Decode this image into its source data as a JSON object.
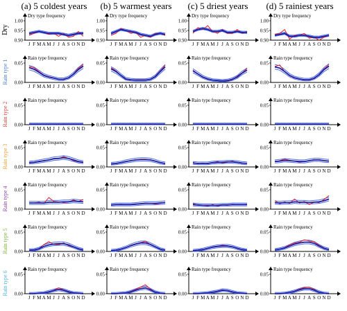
{
  "chart_data": {
    "type": "line",
    "columns": [
      "(a) 5 coldest years",
      "(b) 5 warmest years",
      "(c) 5 driest years",
      "(d) 5 rainiest years"
    ],
    "rows": [
      {
        "label": "Dry",
        "color": "#000000",
        "panel_title": "Dry type frequency",
        "ylim": [
          0.9,
          1.0
        ],
        "yticks": [
          "0.90",
          "0.95",
          "1.00"
        ]
      },
      {
        "label": "Rain type 1",
        "color": "#4a7fcf",
        "panel_title": "Rain type frequency",
        "ylim": [
          0,
          0.05
        ],
        "yticks": [
          "0.00",
          "0.05"
        ]
      },
      {
        "label": "Rain type 2",
        "color": "#d8453c",
        "panel_title": "Rain type frequency",
        "ylim": [
          0,
          0.05
        ],
        "yticks": [
          "0.00",
          "0.05"
        ]
      },
      {
        "label": "Rain type 3",
        "color": "#e8a33a",
        "panel_title": "Rain type frequency",
        "ylim": [
          0,
          0.05
        ],
        "yticks": [
          "0.00",
          "0.05"
        ]
      },
      {
        "label": "Rain type 4",
        "color": "#8a3fa8",
        "panel_title": "Rain type frequency",
        "ylim": [
          0,
          0.05
        ],
        "yticks": [
          "0.00",
          "0.05"
        ]
      },
      {
        "label": "Rain type 5",
        "color": "#7bb33a",
        "panel_title": "Rain type frequency",
        "ylim": [
          0,
          0.05
        ],
        "yticks": [
          "0.00",
          "0.05"
        ]
      },
      {
        "label": "Rain type 6",
        "color": "#4fb3de",
        "panel_title": "Rain type frequency",
        "ylim": [
          0,
          0.05
        ],
        "yticks": [
          "0.00",
          "0.05"
        ]
      }
    ],
    "months": [
      "J",
      "F",
      "M",
      "A",
      "M",
      "J",
      "J",
      "A",
      "S",
      "O",
      "N",
      "D"
    ],
    "line_colors": {
      "observed": "#e02020",
      "mean": "#1a1a9c",
      "envelope": "#4a6cf0"
    },
    "panels": [
      [
        {
          "obs": [
            0.925,
            0.935,
            0.945,
            0.94,
            0.93,
            0.935,
            0.92,
            0.935,
            0.915,
            0.92,
            0.945,
            0.92
          ],
          "mean": [
            0.935,
            0.94,
            0.945,
            0.94,
            0.935,
            0.935,
            0.935,
            0.93,
            0.925,
            0.93,
            0.935,
            0.935
          ]
        },
        {
          "obs": [
            0.041,
            0.038,
            0.028,
            0.019,
            0.015,
            0.012,
            0.008,
            0.007,
            0.012,
            0.022,
            0.036,
            0.046
          ],
          "mean": [
            0.038,
            0.034,
            0.026,
            0.018,
            0.014,
            0.011,
            0.008,
            0.008,
            0.012,
            0.021,
            0.033,
            0.042
          ]
        },
        {
          "obs": [
            0.001,
            0.001,
            0.001,
            0.001,
            0.001,
            0.001,
            0.001,
            0.002,
            0.001,
            0.002,
            0.001,
            0.001
          ],
          "mean": [
            0.001,
            0.001,
            0.001,
            0.001,
            0.001,
            0.001,
            0.001,
            0.001,
            0.001,
            0.001,
            0.001,
            0.001
          ]
        },
        {
          "obs": [
            0.01,
            0.011,
            0.015,
            0.015,
            0.018,
            0.022,
            0.021,
            0.027,
            0.022,
            0.016,
            0.013,
            0.011
          ],
          "mean": [
            0.011,
            0.012,
            0.014,
            0.016,
            0.018,
            0.021,
            0.022,
            0.024,
            0.022,
            0.018,
            0.014,
            0.012
          ]
        },
        {
          "obs": [
            0.016,
            0.016,
            0.018,
            0.015,
            0.03,
            0.02,
            0.019,
            0.017,
            0.018,
            0.024,
            0.02,
            0.025
          ],
          "mean": [
            0.016,
            0.016,
            0.016,
            0.016,
            0.018,
            0.018,
            0.018,
            0.019,
            0.019,
            0.021,
            0.02,
            0.019
          ]
        },
        {
          "obs": [
            0.002,
            0.004,
            0.007,
            0.018,
            0.025,
            0.018,
            0.017,
            0.022,
            0.015,
            0.011,
            0.007,
            0.004
          ],
          "mean": [
            0.003,
            0.004,
            0.007,
            0.013,
            0.017,
            0.019,
            0.02,
            0.02,
            0.017,
            0.012,
            0.007,
            0.004
          ]
        },
        {
          "obs": [
            0.0,
            0.0,
            0.001,
            0.002,
            0.005,
            0.009,
            0.015,
            0.01,
            0.006,
            0.002,
            0.001,
            0.0
          ],
          "mean": [
            0.0,
            0.0,
            0.001,
            0.002,
            0.005,
            0.008,
            0.011,
            0.009,
            0.005,
            0.002,
            0.001,
            0.0
          ]
        }
      ],
      [
        {
          "obs": [
            0.925,
            0.935,
            0.96,
            0.95,
            0.935,
            0.94,
            0.915,
            0.925,
            0.915,
            0.935,
            0.935,
            0.925
          ],
          "mean": [
            0.935,
            0.945,
            0.955,
            0.95,
            0.945,
            0.94,
            0.93,
            0.925,
            0.92,
            0.93,
            0.935,
            0.93
          ]
        },
        {
          "obs": [
            0.038,
            0.03,
            0.018,
            0.008,
            0.006,
            0.007,
            0.007,
            0.007,
            0.008,
            0.016,
            0.03,
            0.044
          ],
          "mean": [
            0.035,
            0.028,
            0.018,
            0.009,
            0.007,
            0.006,
            0.006,
            0.006,
            0.008,
            0.015,
            0.028,
            0.04
          ]
        },
        {
          "obs": [
            0.001,
            0.001,
            0.001,
            0.001,
            0.001,
            0.001,
            0.001,
            0.001,
            0.002,
            0.001,
            0.001,
            0.001
          ],
          "mean": [
            0.001,
            0.001,
            0.001,
            0.001,
            0.001,
            0.001,
            0.001,
            0.001,
            0.001,
            0.001,
            0.001,
            0.001
          ]
        },
        {
          "obs": [
            0.007,
            0.008,
            0.011,
            0.014,
            0.016,
            0.018,
            0.02,
            0.02,
            0.018,
            0.015,
            0.011,
            0.008
          ],
          "mean": [
            0.008,
            0.009,
            0.011,
            0.014,
            0.016,
            0.018,
            0.019,
            0.019,
            0.018,
            0.015,
            0.011,
            0.009
          ]
        },
        {
          "obs": [
            0.01,
            0.012,
            0.013,
            0.012,
            0.012,
            0.012,
            0.014,
            0.016,
            0.015,
            0.013,
            0.015,
            0.018
          ],
          "mean": [
            0.011,
            0.012,
            0.012,
            0.012,
            0.012,
            0.013,
            0.014,
            0.015,
            0.015,
            0.015,
            0.016,
            0.017
          ]
        },
        {
          "obs": [
            0.002,
            0.003,
            0.006,
            0.01,
            0.016,
            0.02,
            0.023,
            0.026,
            0.018,
            0.012,
            0.006,
            0.003
          ],
          "mean": [
            0.002,
            0.003,
            0.006,
            0.01,
            0.015,
            0.019,
            0.022,
            0.022,
            0.018,
            0.012,
            0.006,
            0.003
          ]
        },
        {
          "obs": [
            0.0,
            0.0,
            0.001,
            0.002,
            0.006,
            0.011,
            0.017,
            0.023,
            0.012,
            0.004,
            0.001,
            0.0
          ],
          "mean": [
            0.0,
            0.0,
            0.001,
            0.002,
            0.005,
            0.009,
            0.013,
            0.015,
            0.01,
            0.004,
            0.001,
            0.0
          ]
        }
      ],
      [
        {
          "obs": [
            0.935,
            0.965,
            0.955,
            0.975,
            0.945,
            0.935,
            0.955,
            0.935,
            0.935,
            0.955,
            0.935,
            0.945
          ],
          "mean": [
            0.945,
            0.955,
            0.96,
            0.955,
            0.945,
            0.945,
            0.95,
            0.94,
            0.94,
            0.945,
            0.94,
            0.94
          ]
        },
        {
          "obs": [
            0.032,
            0.022,
            0.013,
            0.008,
            0.006,
            0.005,
            0.004,
            0.004,
            0.007,
            0.016,
            0.025,
            0.036
          ],
          "mean": [
            0.03,
            0.022,
            0.014,
            0.009,
            0.006,
            0.005,
            0.004,
            0.005,
            0.008,
            0.014,
            0.024,
            0.032
          ]
        },
        {
          "obs": [
            0.001,
            0.001,
            0.001,
            0.0,
            0.001,
            0.001,
            0.001,
            0.001,
            0.001,
            0.001,
            0.001,
            0.001
          ],
          "mean": [
            0.001,
            0.001,
            0.001,
            0.001,
            0.001,
            0.001,
            0.001,
            0.001,
            0.001,
            0.001,
            0.001,
            0.001
          ]
        },
        {
          "obs": [
            0.012,
            0.008,
            0.01,
            0.008,
            0.011,
            0.014,
            0.01,
            0.012,
            0.015,
            0.012,
            0.009,
            0.009
          ],
          "mean": [
            0.01,
            0.009,
            0.009,
            0.009,
            0.011,
            0.012,
            0.012,
            0.013,
            0.013,
            0.012,
            0.01,
            0.009
          ]
        },
        {
          "obs": [
            0.015,
            0.01,
            0.01,
            0.008,
            0.012,
            0.008,
            0.011,
            0.01,
            0.013,
            0.012,
            0.012,
            0.013
          ],
          "mean": [
            0.012,
            0.011,
            0.01,
            0.01,
            0.01,
            0.01,
            0.011,
            0.011,
            0.012,
            0.012,
            0.012,
            0.012
          ]
        },
        {
          "obs": [
            0.002,
            0.003,
            0.005,
            0.008,
            0.012,
            0.014,
            0.016,
            0.015,
            0.012,
            0.009,
            0.005,
            0.003
          ],
          "mean": [
            0.002,
            0.003,
            0.005,
            0.008,
            0.011,
            0.013,
            0.014,
            0.014,
            0.012,
            0.008,
            0.005,
            0.003
          ]
        },
        {
          "obs": [
            0.0,
            0.0,
            0.001,
            0.002,
            0.004,
            0.007,
            0.01,
            0.008,
            0.005,
            0.002,
            0.001,
            0.0
          ],
          "mean": [
            0.0,
            0.0,
            0.001,
            0.002,
            0.004,
            0.006,
            0.009,
            0.008,
            0.005,
            0.002,
            0.001,
            0.0
          ]
        }
      ],
      [
        {
          "obs": [
            0.93,
            0.935,
            0.955,
            0.905,
            0.925,
            0.925,
            0.935,
            0.91,
            0.915,
            0.9,
            0.915,
            0.925
          ],
          "mean": [
            0.925,
            0.93,
            0.935,
            0.92,
            0.92,
            0.925,
            0.925,
            0.92,
            0.915,
            0.915,
            0.92,
            0.925
          ]
        },
        {
          "obs": [
            0.041,
            0.045,
            0.028,
            0.017,
            0.011,
            0.009,
            0.006,
            0.006,
            0.01,
            0.021,
            0.035,
            0.046
          ],
          "mean": [
            0.04,
            0.037,
            0.028,
            0.018,
            0.012,
            0.009,
            0.007,
            0.007,
            0.011,
            0.02,
            0.033,
            0.042
          ]
        },
        {
          "obs": [
            0.001,
            0.001,
            0.001,
            0.002,
            0.001,
            0.001,
            0.001,
            0.001,
            0.001,
            0.001,
            0.001,
            0.001
          ],
          "mean": [
            0.001,
            0.001,
            0.001,
            0.001,
            0.001,
            0.001,
            0.001,
            0.001,
            0.001,
            0.001,
            0.001,
            0.001
          ]
        },
        {
          "obs": [
            0.014,
            0.016,
            0.02,
            0.017,
            0.015,
            0.012,
            0.014,
            0.016,
            0.019,
            0.019,
            0.016,
            0.015
          ],
          "mean": [
            0.014,
            0.015,
            0.017,
            0.016,
            0.015,
            0.014,
            0.014,
            0.016,
            0.018,
            0.018,
            0.016,
            0.015
          ]
        },
        {
          "obs": [
            0.022,
            0.014,
            0.019,
            0.015,
            0.026,
            0.016,
            0.02,
            0.012,
            0.018,
            0.017,
            0.025,
            0.035
          ],
          "mean": [
            0.017,
            0.016,
            0.017,
            0.017,
            0.019,
            0.018,
            0.018,
            0.017,
            0.018,
            0.019,
            0.022,
            0.026
          ]
        },
        {
          "obs": [
            0.004,
            0.006,
            0.01,
            0.017,
            0.022,
            0.024,
            0.03,
            0.027,
            0.025,
            0.016,
            0.009,
            0.005
          ],
          "mean": [
            0.004,
            0.006,
            0.009,
            0.014,
            0.019,
            0.022,
            0.024,
            0.024,
            0.021,
            0.014,
            0.008,
            0.005
          ]
        },
        {
          "obs": [
            0.0,
            0.0,
            0.001,
            0.003,
            0.007,
            0.012,
            0.016,
            0.017,
            0.011,
            0.004,
            0.001,
            0.0
          ],
          "mean": [
            0.0,
            0.0,
            0.001,
            0.003,
            0.006,
            0.01,
            0.013,
            0.013,
            0.009,
            0.004,
            0.001,
            0.0
          ]
        }
      ]
    ]
  }
}
